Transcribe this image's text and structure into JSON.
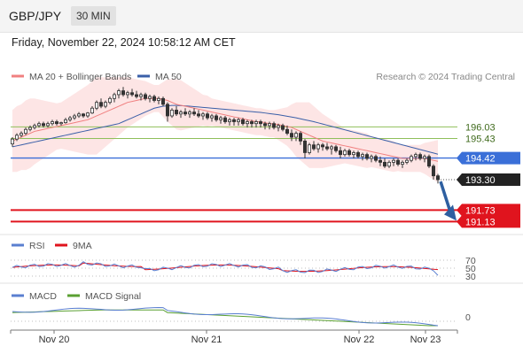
{
  "header": {
    "pair": "GBP/JPY",
    "timeframe": "30 MIN",
    "datetime": "Friday, November 22, 2024 10:58:12 AM CET"
  },
  "legend": {
    "ma20_label": "MA 20 + Bollinger Bands",
    "ma50_label": "MA 50",
    "credit": "Research © 2024 Trading Central",
    "rsi_label": "RSI",
    "rsi_ma_label": "9MA",
    "macd_label": "MACD",
    "macd_signal_label": "MACD Signal"
  },
  "colors": {
    "ma20": "#f08080",
    "ma50": "#3a5fa8",
    "bollinger_fill": "#fde0e0",
    "candle": "#333333",
    "resistance": "#8fbf5a",
    "pivot": "#3a6fd8",
    "support": "#e0141e",
    "arrow": "#2e5fa0",
    "rsi": "#5a7fd0",
    "rsi_ma": "#e0141e",
    "macd": "#5a7fd0",
    "macd_signal": "#5aa032"
  },
  "chart_data": {
    "type": "candlestick",
    "x_labels": [
      "Nov 20",
      "Nov 21",
      "Nov 22",
      "Nov 23"
    ],
    "price_levels": [
      {
        "value": 196.03,
        "label": "196.03",
        "kind": "resistance"
      },
      {
        "value": 195.43,
        "label": "195.43",
        "kind": "resistance"
      },
      {
        "value": 194.42,
        "label": "194.42",
        "kind": "pivot"
      },
      {
        "value": 193.3,
        "label": "193.30",
        "kind": "last"
      },
      {
        "value": 191.73,
        "label": "191.73",
        "kind": "support"
      },
      {
        "value": 191.13,
        "label": "191.13",
        "kind": "support"
      }
    ],
    "price_range": [
      190.6,
      199.3
    ],
    "rsi_levels": [
      "70",
      "50",
      "30"
    ],
    "macd_levels": [
      "0"
    ],
    "ohlc": [
      [
        195.15,
        195.5,
        195.0,
        195.4
      ],
      [
        195.4,
        195.7,
        195.3,
        195.6
      ],
      [
        195.6,
        195.8,
        195.5,
        195.7
      ],
      [
        195.7,
        196.0,
        195.6,
        195.9
      ],
      [
        195.9,
        196.1,
        195.8,
        196.0
      ],
      [
        196.0,
        196.2,
        195.9,
        196.1
      ],
      [
        196.1,
        196.3,
        196.0,
        196.2
      ],
      [
        196.2,
        196.3,
        196.0,
        196.1
      ],
      [
        196.1,
        196.3,
        196.0,
        196.2
      ],
      [
        196.2,
        196.4,
        196.1,
        196.3
      ],
      [
        196.3,
        196.4,
        196.1,
        196.2
      ],
      [
        196.2,
        196.3,
        196.1,
        196.25
      ],
      [
        196.25,
        196.5,
        196.2,
        196.4
      ],
      [
        196.4,
        196.6,
        196.3,
        196.5
      ],
      [
        196.5,
        196.7,
        196.4,
        196.6
      ],
      [
        196.6,
        196.8,
        196.5,
        196.7
      ],
      [
        196.7,
        196.75,
        196.5,
        196.6
      ],
      [
        196.6,
        196.8,
        196.5,
        196.75
      ],
      [
        196.75,
        197.1,
        196.7,
        197.0
      ],
      [
        197.0,
        197.4,
        196.9,
        197.3
      ],
      [
        197.3,
        197.5,
        197.0,
        197.1
      ],
      [
        197.1,
        197.4,
        197.0,
        197.3
      ],
      [
        197.3,
        197.6,
        197.2,
        197.5
      ],
      [
        197.5,
        197.8,
        197.3,
        197.7
      ],
      [
        197.7,
        198.0,
        197.5,
        197.9
      ],
      [
        197.9,
        198.1,
        197.6,
        197.7
      ],
      [
        197.7,
        197.9,
        197.5,
        197.8
      ],
      [
        197.8,
        198.0,
        197.6,
        197.7
      ],
      [
        197.7,
        197.9,
        197.5,
        197.6
      ],
      [
        197.6,
        197.8,
        197.4,
        197.7
      ],
      [
        197.7,
        197.8,
        197.4,
        197.5
      ],
      [
        197.5,
        197.7,
        197.3,
        197.6
      ],
      [
        197.6,
        197.7,
        197.3,
        197.4
      ],
      [
        197.4,
        197.6,
        197.2,
        197.5
      ],
      [
        197.5,
        197.6,
        197.1,
        197.2
      ],
      [
        197.2,
        197.3,
        196.3,
        196.6
      ],
      [
        196.6,
        197.0,
        196.5,
        196.9
      ],
      [
        196.9,
        197.1,
        196.6,
        196.7
      ],
      [
        196.7,
        196.9,
        196.5,
        196.8
      ],
      [
        196.8,
        197.0,
        196.6,
        196.7
      ],
      [
        196.7,
        196.9,
        196.5,
        196.8
      ],
      [
        196.8,
        197.0,
        196.6,
        196.7
      ],
      [
        196.7,
        196.9,
        196.5,
        196.6
      ],
      [
        196.6,
        196.8,
        196.4,
        196.7
      ],
      [
        196.7,
        196.8,
        196.4,
        196.5
      ],
      [
        196.5,
        196.7,
        196.3,
        196.6
      ],
      [
        196.6,
        196.7,
        196.3,
        196.4
      ],
      [
        196.4,
        196.6,
        196.2,
        196.5
      ],
      [
        196.5,
        196.6,
        196.2,
        196.3
      ],
      [
        196.3,
        196.5,
        196.1,
        196.4
      ],
      [
        196.4,
        196.5,
        196.1,
        196.3
      ],
      [
        196.3,
        196.5,
        196.1,
        196.4
      ],
      [
        196.4,
        196.5,
        196.1,
        196.2
      ],
      [
        196.2,
        196.4,
        196.0,
        196.3
      ],
      [
        196.3,
        196.4,
        196.0,
        196.2
      ],
      [
        196.2,
        196.4,
        196.0,
        196.3
      ],
      [
        196.3,
        196.4,
        196.0,
        196.2
      ],
      [
        196.2,
        196.3,
        195.9,
        196.1
      ],
      [
        196.1,
        196.3,
        195.9,
        196.2
      ],
      [
        196.2,
        196.3,
        195.9,
        196.0
      ],
      [
        196.0,
        196.2,
        195.8,
        196.1
      ],
      [
        196.1,
        196.2,
        195.8,
        195.9
      ],
      [
        195.9,
        196.1,
        195.6,
        195.7
      ],
      [
        195.7,
        195.9,
        195.3,
        195.5
      ],
      [
        195.5,
        195.8,
        195.3,
        195.7
      ],
      [
        195.7,
        195.8,
        195.1,
        195.3
      ],
      [
        195.3,
        195.4,
        194.4,
        194.7
      ],
      [
        194.7,
        195.2,
        194.6,
        195.1
      ],
      [
        195.1,
        195.3,
        194.8,
        194.9
      ],
      [
        194.9,
        195.2,
        194.7,
        195.1
      ],
      [
        195.1,
        195.2,
        194.8,
        195.0
      ],
      [
        195.0,
        195.2,
        194.8,
        194.9
      ],
      [
        194.9,
        195.1,
        194.6,
        195.0
      ],
      [
        195.0,
        195.1,
        194.7,
        194.8
      ],
      [
        194.8,
        195.0,
        194.4,
        194.6
      ],
      [
        194.6,
        194.9,
        194.5,
        194.8
      ],
      [
        194.8,
        194.9,
        194.5,
        194.6
      ],
      [
        194.6,
        194.8,
        194.4,
        194.7
      ],
      [
        194.7,
        194.8,
        194.4,
        194.5
      ],
      [
        194.5,
        194.7,
        194.3,
        194.6
      ],
      [
        194.6,
        194.7,
        194.3,
        194.4
      ],
      [
        194.4,
        194.6,
        194.2,
        194.5
      ],
      [
        194.5,
        194.6,
        194.2,
        194.3
      ],
      [
        194.3,
        194.5,
        194.0,
        194.2
      ],
      [
        194.2,
        194.4,
        193.9,
        194.0
      ],
      [
        194.0,
        194.3,
        193.9,
        194.2
      ],
      [
        194.2,
        194.4,
        194.0,
        194.3
      ],
      [
        194.3,
        194.4,
        194.0,
        194.1
      ],
      [
        194.1,
        194.3,
        193.9,
        194.2
      ],
      [
        194.2,
        194.4,
        194.1,
        194.3
      ],
      [
        194.3,
        194.6,
        194.2,
        194.5
      ],
      [
        194.5,
        194.7,
        194.3,
        194.6
      ],
      [
        194.6,
        194.7,
        194.3,
        194.4
      ],
      [
        194.4,
        194.6,
        194.2,
        194.5
      ],
      [
        194.5,
        194.6,
        193.9,
        194.0
      ],
      [
        194.0,
        194.1,
        193.3,
        193.5
      ],
      [
        193.5,
        193.6,
        193.1,
        193.3
      ]
    ],
    "ma20": [
      195.3,
      195.4,
      195.5,
      195.6,
      195.7,
      195.8,
      195.85,
      195.9,
      195.95,
      196.0,
      196.05,
      196.1,
      196.15,
      196.2,
      196.25,
      196.3,
      196.35,
      196.4,
      196.5,
      196.6,
      196.7,
      196.8,
      196.9,
      197.0,
      197.1,
      197.2,
      197.3,
      197.35,
      197.4,
      197.45,
      197.5,
      197.5,
      197.5,
      197.5,
      197.45,
      197.4,
      197.3,
      197.2,
      197.15,
      197.1,
      197.05,
      197.0,
      196.95,
      196.9,
      196.85,
      196.8,
      196.75,
      196.7,
      196.65,
      196.6,
      196.55,
      196.5,
      196.45,
      196.4,
      196.35,
      196.3,
      196.3,
      196.25,
      196.2,
      196.2,
      196.15,
      196.1,
      196.05,
      196.0,
      195.9,
      195.8,
      195.7,
      195.6,
      195.5,
      195.4,
      195.3,
      195.25,
      195.2,
      195.15,
      195.1,
      195.05,
      195.0,
      194.95,
      194.9,
      194.85,
      194.8,
      194.75,
      194.7,
      194.65,
      194.6,
      194.55,
      194.5,
      194.45,
      194.4,
      194.4,
      194.4,
      194.4,
      194.4,
      194.4,
      194.35,
      194.3,
      194.25
    ],
    "ma50": [
      195.0,
      195.05,
      195.1,
      195.15,
      195.2,
      195.25,
      195.3,
      195.35,
      195.4,
      195.45,
      195.5,
      195.55,
      195.6,
      195.65,
      195.7,
      195.75,
      195.8,
      195.85,
      195.9,
      195.95,
      196.0,
      196.05,
      196.1,
      196.15,
      196.2,
      196.3,
      196.4,
      196.5,
      196.6,
      196.7,
      196.8,
      196.9,
      197.0,
      197.05,
      197.1,
      197.12,
      197.14,
      197.14,
      197.13,
      197.12,
      197.1,
      197.08,
      197.06,
      197.04,
      197.02,
      197.0,
      196.98,
      196.96,
      196.94,
      196.92,
      196.9,
      196.88,
      196.86,
      196.84,
      196.82,
      196.8,
      196.78,
      196.75,
      196.72,
      196.69,
      196.66,
      196.62,
      196.58,
      196.54,
      196.5,
      196.45,
      196.4,
      196.35,
      196.3,
      196.24,
      196.18,
      196.12,
      196.06,
      196.0,
      195.94,
      195.88,
      195.82,
      195.76,
      195.7,
      195.64,
      195.58,
      195.52,
      195.46,
      195.4,
      195.34,
      195.28,
      195.22,
      195.16,
      195.1,
      195.04,
      194.98,
      194.92,
      194.86,
      194.8,
      194.74,
      194.68,
      194.62
    ],
    "bb_width": [
      1.6,
      1.7,
      1.7,
      1.8,
      1.8,
      1.7,
      1.6,
      1.5,
      1.4,
      1.3,
      1.2,
      1.2,
      1.3,
      1.4,
      1.5,
      1.6,
      1.7,
      1.8,
      1.9,
      2.0,
      1.9,
      1.8,
      1.7,
      1.6,
      1.5,
      1.4,
      1.3,
      1.2,
      1.1,
      1.0,
      0.9,
      0.8,
      0.7,
      0.7,
      0.9,
      1.1,
      1.2,
      1.3,
      1.3,
      1.2,
      1.1,
      1.0,
      0.9,
      0.8,
      0.8,
      0.7,
      0.7,
      0.7,
      0.7,
      0.7,
      0.7,
      0.7,
      0.7,
      0.7,
      0.7,
      0.7,
      0.7,
      0.7,
      0.7,
      0.7,
      0.8,
      0.9,
      1.0,
      1.2,
      1.4,
      1.5,
      1.6,
      1.7,
      1.6,
      1.5,
      1.4,
      1.3,
      1.2,
      1.1,
      1.0,
      0.9,
      0.9,
      0.9,
      0.9,
      0.9,
      0.9,
      0.8,
      0.8,
      0.8,
      0.8,
      0.8,
      0.8,
      0.7,
      0.7,
      0.7,
      0.7,
      0.7,
      0.7,
      0.8,
      0.9,
      1.0,
      1.1
    ]
  }
}
